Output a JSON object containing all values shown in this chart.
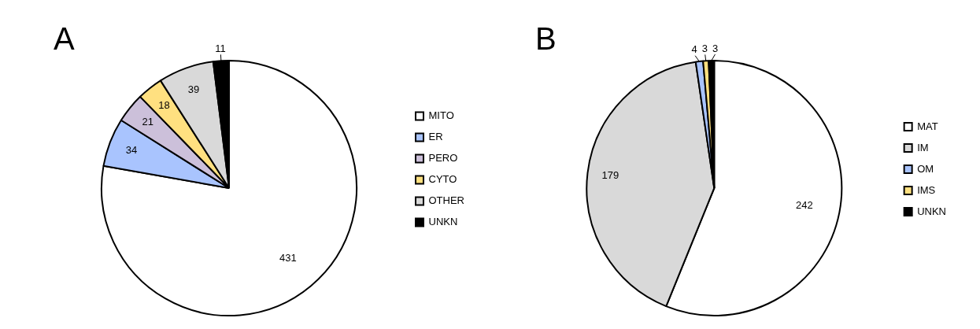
{
  "chart_data": [
    {
      "type": "pie",
      "title": "A",
      "categories": [
        "MITO",
        "ER",
        "PERO",
        "CYTO",
        "OTHER",
        "UNKN"
      ],
      "values": [
        431,
        34,
        21,
        18,
        39,
        11
      ],
      "colors": [
        "#ffffff",
        "#a9c4fe",
        "#ccc0da",
        "#ffe080",
        "#d9d9d9",
        "#000000"
      ],
      "data_labels": true,
      "legend": "right"
    },
    {
      "type": "pie",
      "title": "B",
      "categories": [
        "MAT",
        "IM",
        "OM",
        "IMS",
        "UNKN"
      ],
      "values": [
        242,
        179,
        4,
        3,
        3
      ],
      "colors": [
        "#ffffff",
        "#d9d9d9",
        "#a9c4fe",
        "#ffe080",
        "#000000"
      ],
      "data_labels": true,
      "legend": "right"
    }
  ]
}
